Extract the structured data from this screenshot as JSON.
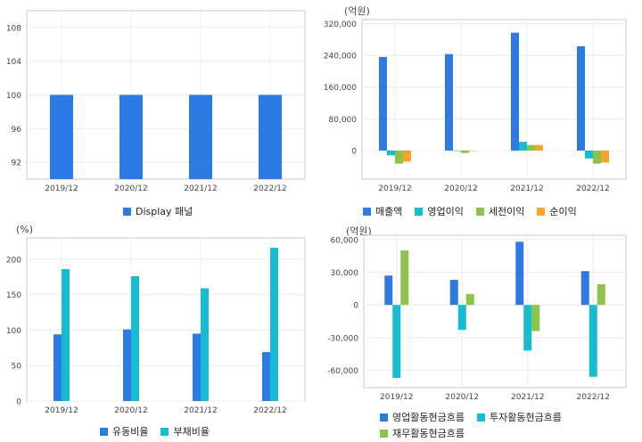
{
  "chart_data": [
    {
      "id": "c1",
      "type": "bar",
      "unit_label": "",
      "categories": [
        "2019/12",
        "2020/12",
        "2021/12",
        "2022/12"
      ],
      "series": [
        {
          "name": "Display 패널",
          "color": "#2e7ae3",
          "values": [
            100,
            100,
            100,
            100
          ]
        }
      ],
      "yticks": [
        92,
        96,
        100,
        104,
        108
      ],
      "ylim": [
        90,
        110
      ],
      "grid": true,
      "legend_position": "bottom"
    },
    {
      "id": "c2",
      "type": "bar",
      "unit_label": "(억원)",
      "categories": [
        "2019/12",
        "2020/12",
        "2021/12",
        "2022/12"
      ],
      "series": [
        {
          "name": "매출액",
          "color": "#2e7ae3",
          "values": [
            236000,
            243000,
            297000,
            263000
          ]
        },
        {
          "name": "영업이익",
          "color": "#17bcd0",
          "values": [
            -12000,
            0,
            22000,
            -20000
          ]
        },
        {
          "name": "세전이익",
          "color": "#8dc34a",
          "values": [
            -33000,
            -6000,
            14000,
            -33000
          ]
        },
        {
          "name": "순이익",
          "color": "#f5a623",
          "values": [
            -28000,
            -1000,
            14000,
            -30000
          ]
        }
      ],
      "yticks": [
        0,
        80000,
        160000,
        240000,
        320000
      ],
      "ytick_labels": [
        "0",
        "80,000",
        "160,000",
        "240,000",
        "320,000"
      ],
      "ylim": [
        -72000,
        330000
      ],
      "grid": true,
      "legend_position": "bottom"
    },
    {
      "id": "c3",
      "type": "bar",
      "unit_label": "(%)",
      "categories": [
        "2019/12",
        "2020/12",
        "2021/12",
        "2022/12"
      ],
      "series": [
        {
          "name": "유동비율",
          "color": "#2e7ae3",
          "values": [
            94,
            101,
            95,
            69
          ]
        },
        {
          "name": "부채비율",
          "color": "#17bcd0",
          "values": [
            186,
            176,
            159,
            216
          ]
        }
      ],
      "yticks": [
        0,
        50,
        100,
        150,
        200
      ],
      "ylim": [
        0,
        230
      ],
      "grid": true,
      "legend_position": "bottom"
    },
    {
      "id": "c4",
      "type": "bar",
      "unit_label": "(억원)",
      "categories": [
        "2019/12",
        "2020/12",
        "2021/12",
        "2022/12"
      ],
      "series": [
        {
          "name": "영업활동현금흐름",
          "color": "#2e7ae3",
          "values": [
            27000,
            23000,
            58000,
            31000
          ]
        },
        {
          "name": "투자활동현금흐름",
          "color": "#17bcd0",
          "values": [
            -67000,
            -23000,
            -42000,
            -66000
          ]
        },
        {
          "name": "재무활동현금흐름",
          "color": "#8dc34a",
          "values": [
            50000,
            10000,
            -24000,
            19000
          ]
        }
      ],
      "yticks": [
        -60000,
        -30000,
        0,
        30000,
        60000
      ],
      "ytick_labels": [
        "-60,000",
        "-30,000",
        "0",
        "30,000",
        "60,000"
      ],
      "ylim": [
        -76000,
        64000
      ],
      "grid": true,
      "legend_position": "bottom"
    }
  ]
}
